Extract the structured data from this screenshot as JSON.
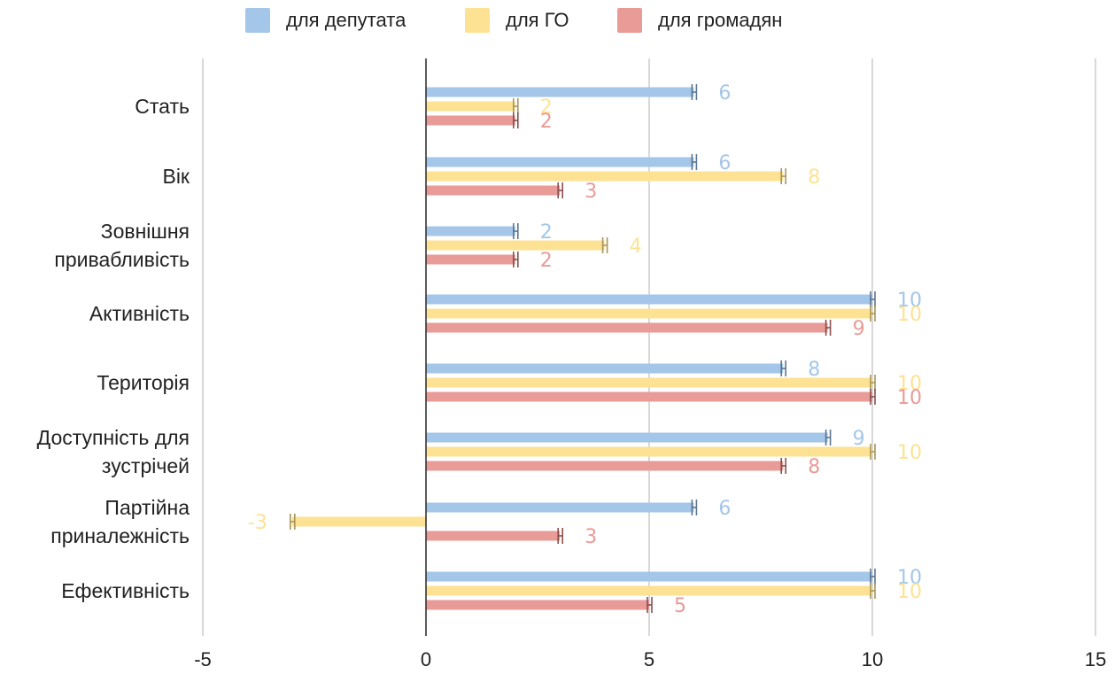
{
  "chart_data": {
    "type": "bar",
    "orientation": "horizontal",
    "categories": [
      [
        "Стать"
      ],
      [
        "Вік"
      ],
      [
        "Зовнішня",
        "привабливість"
      ],
      [
        "Активність"
      ],
      [
        "Територія"
      ],
      [
        "Доступність для",
        "зустрічей"
      ],
      [
        "Партійна",
        "приналежність"
      ],
      [
        "Ефективність"
      ]
    ],
    "series": [
      {
        "name": "для депутата",
        "color": "#a4c6e8",
        "label_color": "#a4c6e8",
        "values": [
          6,
          6,
          2,
          10,
          8,
          9,
          6,
          10
        ]
      },
      {
        "name": "для ГО",
        "color": "#fde293",
        "label_color": "#fde293",
        "values": [
          2,
          8,
          4,
          10,
          10,
          10,
          -3,
          10
        ]
      },
      {
        "name": "для громадян",
        "color": "#e99b98",
        "label_color": "#e99b98",
        "values": [
          2,
          3,
          2,
          9,
          10,
          8,
          3,
          5
        ]
      }
    ],
    "xlim": [
      -5,
      15
    ],
    "xticks": [
      "-5",
      "0",
      "5",
      "10",
      "15"
    ],
    "xtick_values": [
      -5,
      0,
      5,
      10,
      15
    ],
    "grid": true,
    "legend_position": "top",
    "error_bars": true
  }
}
